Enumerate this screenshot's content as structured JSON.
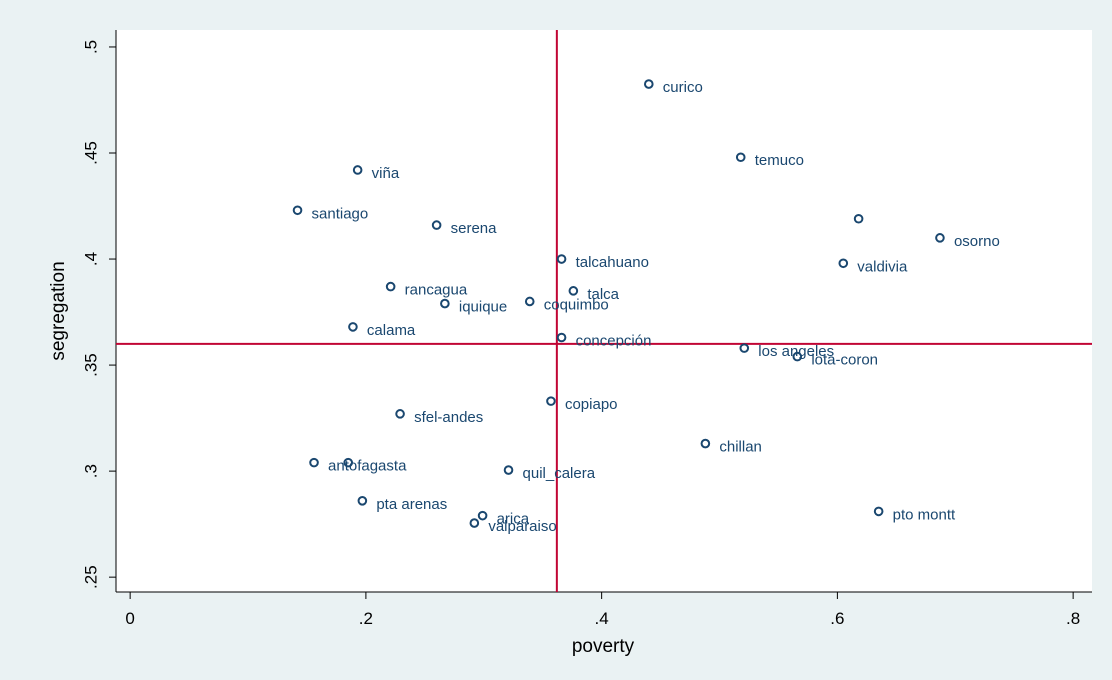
{
  "chart_data": {
    "type": "scatter",
    "x_label": "poverty",
    "y_label": "segregation",
    "x": [
      0.44,
      0.518,
      0.193,
      0.142,
      0.26,
      0.618,
      0.687,
      0.605,
      0.366,
      0.221,
      0.376,
      0.339,
      0.267,
      0.189,
      0.366,
      0.521,
      0.566,
      0.357,
      0.229,
      0.488,
      0.156,
      0.185,
      0.321,
      0.197,
      0.299,
      0.292,
      0.635
    ],
    "values": [
      0.4825,
      0.448,
      0.442,
      0.423,
      0.416,
      0.419,
      0.41,
      0.398,
      0.4,
      0.387,
      0.385,
      0.38,
      0.379,
      0.368,
      0.363,
      0.358,
      0.354,
      0.333,
      0.327,
      0.313,
      0.304,
      0.304,
      0.3005,
      0.286,
      0.279,
      0.2755,
      0.281
    ],
    "point_labels": [
      "curico",
      "temuco",
      "viña",
      "santiago",
      "serena",
      null,
      "osorno",
      "valdivia",
      "talcahuano",
      "rancagua",
      "talca",
      "coquimbo",
      "iquique",
      "calama",
      "concepción",
      "los angeles",
      "lota-coron",
      "copiapo",
      "sfel-andes",
      "chillan",
      "antofagasta",
      null,
      "quil_calera",
      "pta arenas",
      "arica",
      "valparaiso",
      "pto montt"
    ],
    "color": "#1a476f",
    "xlim": [
      -0.012,
      0.816
    ],
    "ylim": [
      0.243,
      0.508
    ],
    "xticks": [
      0,
      {
        "value": 0.2,
        "label": ".2"
      },
      {
        "value": 0.4,
        "label": ".4"
      },
      {
        "value": 0.6,
        "label": ".6"
      },
      {
        "value": 0.8,
        "label": ".8"
      }
    ],
    "yticks": [
      {
        "value": 0.25,
        "label": ".25"
      },
      {
        "value": 0.3,
        "label": ".3"
      },
      {
        "value": 0.35,
        "label": ".35"
      },
      {
        "value": 0.4,
        "label": ".4"
      },
      {
        "value": 0.45,
        "label": ".45"
      },
      {
        "value": 0.5,
        "label": ".5"
      }
    ],
    "xline": 0.362,
    "yline": 0.36,
    "reference_color": "#c10534"
  }
}
